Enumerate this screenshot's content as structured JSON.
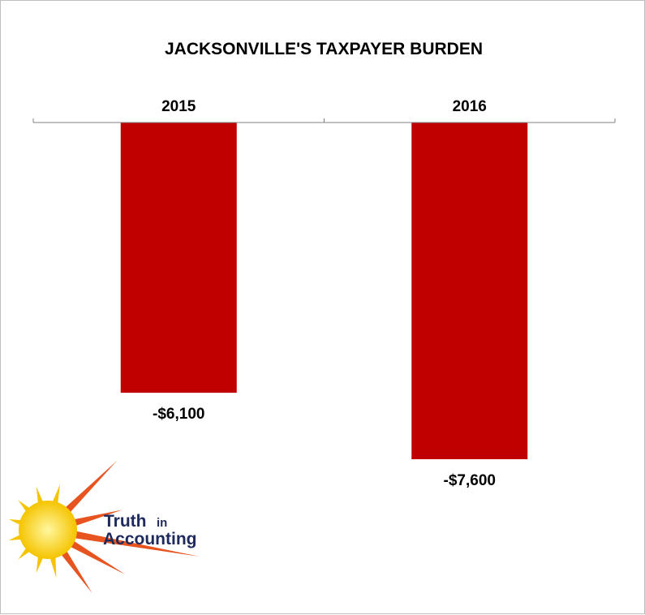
{
  "chart_data": {
    "type": "bar",
    "title": "JACKSONVILLE'S TAXPAYER BURDEN",
    "categories": [
      "2015",
      "2016"
    ],
    "values": [
      -6100,
      -7600
    ],
    "value_labels": [
      "-$6,100",
      "-$7,600"
    ],
    "xlabel": "",
    "ylabel": "",
    "ylim": [
      -8000,
      0
    ],
    "category_axis_position": "top",
    "grid": false,
    "legend": "none",
    "colors": {
      "bar": "#c00000",
      "axis": "#808080"
    }
  },
  "logo": {
    "word1": "Truth",
    "word2": "in",
    "word3": "Accounting",
    "colors": {
      "text": "#1f2a5c",
      "sun_outer": "#f5c400",
      "sun_inner": "#fff7a0",
      "rays": "#e8541f"
    }
  }
}
